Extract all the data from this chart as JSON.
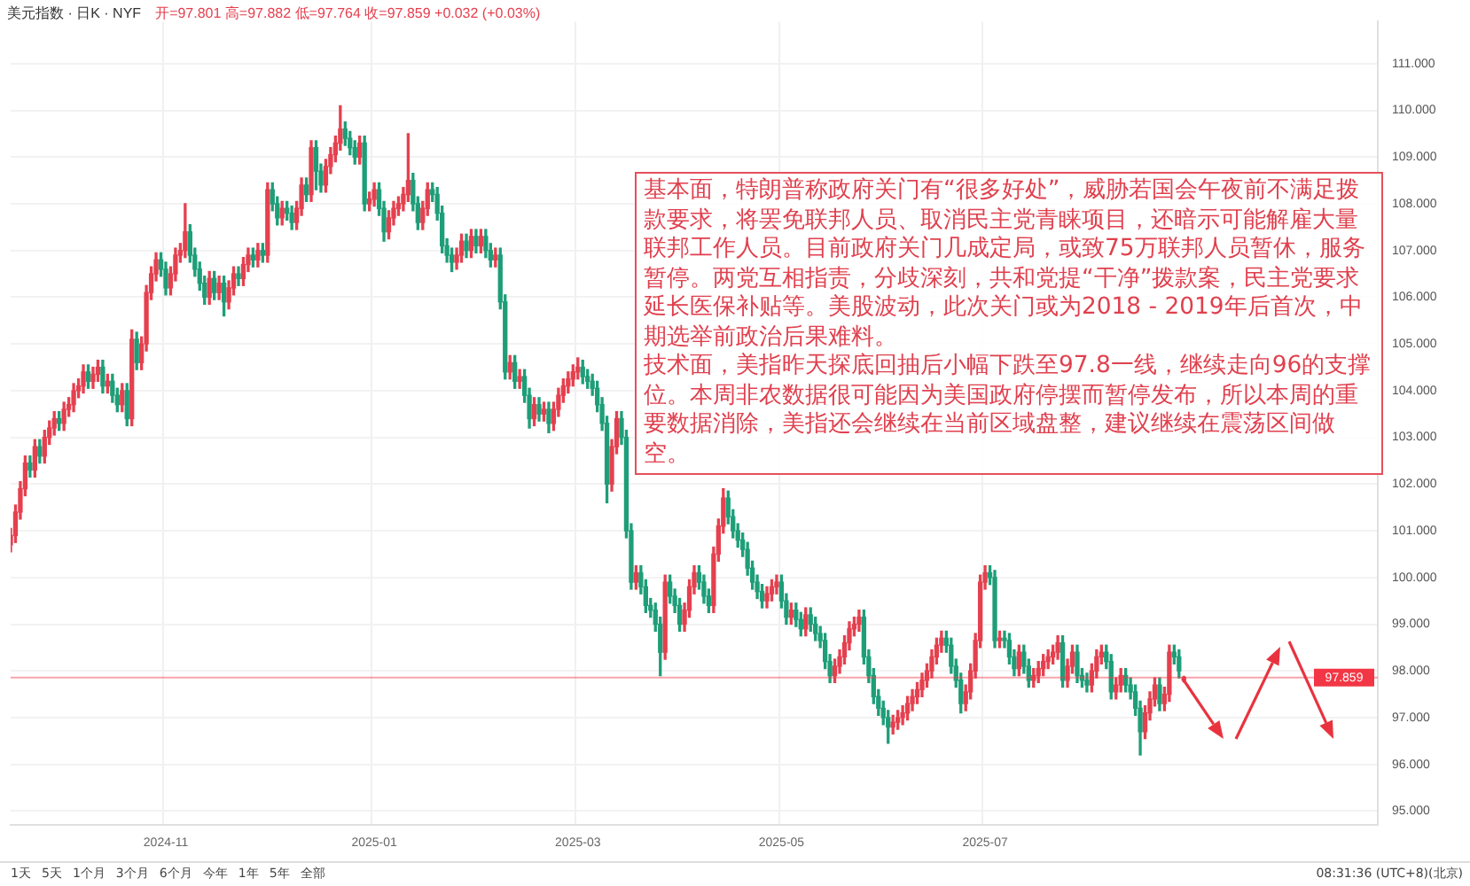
{
  "chart_data": {
    "type": "candlestick",
    "title": "美元指数 · 日K · NYF",
    "subtitle": "开=97.801 高=97.882 低=97.764 收=97.859 +0.032 (+0.03%)",
    "categories": [
      null,
      null,
      null,
      null,
      null,
      null,
      null,
      null,
      null,
      null,
      null,
      null,
      null,
      null,
      null,
      null,
      null,
      null,
      null,
      null,
      null,
      null,
      null,
      null,
      null,
      null,
      null,
      null,
      null,
      null,
      null,
      null,
      "2024-11",
      null,
      null,
      null,
      null,
      null,
      null,
      null,
      null,
      null,
      null,
      null,
      null,
      null,
      null,
      null,
      null,
      null,
      null,
      null,
      null,
      null,
      null,
      null,
      null,
      null,
      null,
      null,
      null,
      null,
      null,
      null,
      null,
      null,
      null,
      null,
      null,
      null,
      null,
      null,
      null,
      null,
      null,
      "2025-01",
      null,
      null,
      null,
      null,
      null,
      null,
      null,
      null,
      null,
      null,
      null,
      null,
      null,
      null,
      null,
      null,
      null,
      null,
      null,
      null,
      null,
      null,
      null,
      null,
      null,
      null,
      null,
      null,
      null,
      null,
      null,
      null,
      null,
      null,
      null,
      null,
      null,
      null,
      null,
      null,
      null,
      "2025-03",
      null,
      null,
      null,
      null,
      null,
      null,
      null,
      null,
      null,
      null,
      null,
      null,
      null,
      null,
      null,
      null,
      null,
      null,
      null,
      null,
      null,
      null,
      null,
      null,
      null,
      null,
      null,
      null,
      null,
      null,
      null,
      null,
      null,
      null,
      null,
      null,
      null,
      null,
      null,
      null,
      null,
      "2025-05",
      null,
      null,
      null,
      null,
      null,
      null,
      null,
      null,
      null,
      null,
      null,
      null,
      null,
      null,
      null,
      null,
      null,
      null,
      null,
      null,
      null,
      null,
      null,
      null,
      null,
      null,
      null,
      null,
      null,
      null,
      null,
      null,
      null,
      null,
      null,
      null,
      null,
      null,
      null,
      null,
      null,
      "2025-07",
      null,
      null,
      null,
      null,
      null,
      null,
      null,
      null,
      null,
      null,
      null,
      null,
      null,
      null,
      null,
      null,
      null,
      null,
      null,
      null,
      null,
      null,
      null,
      null,
      null,
      null,
      null,
      null,
      null,
      null,
      null,
      null,
      null,
      null,
      null,
      null,
      null,
      null,
      null,
      null,
      null,
      null,
      null,
      null,
      null,
      null,
      null,
      null,
      null,
      null,
      null,
      null,
      null,
      null,
      null,
      null,
      null,
      null,
      null,
      null,
      null,
      null,
      null,
      null,
      null,
      null,
      null,
      null,
      null,
      null,
      null,
      null,
      null,
      null,
      null,
      null,
      null,
      null,
      null,
      null,
      null
    ],
    "ohlc": [
      [
        100.7,
        101.05,
        100.55,
        100.9
      ],
      [
        100.9,
        101.55,
        100.75,
        101.4
      ],
      [
        101.4,
        102.05,
        101.25,
        101.9
      ],
      [
        101.9,
        102.6,
        101.75,
        102.45
      ],
      [
        102.45,
        102.6,
        102.15,
        102.3
      ],
      [
        102.3,
        102.95,
        102.15,
        102.8
      ],
      [
        102.8,
        102.95,
        102.45,
        102.6
      ],
      [
        102.6,
        103.15,
        102.45,
        103.0
      ],
      [
        103.0,
        103.35,
        102.85,
        103.2
      ],
      [
        103.2,
        103.55,
        103.05,
        103.4
      ],
      [
        103.4,
        103.55,
        103.15,
        103.3
      ],
      [
        103.3,
        103.75,
        103.15,
        103.6
      ],
      [
        103.6,
        103.85,
        103.45,
        103.7
      ],
      [
        103.7,
        104.15,
        103.55,
        104.0
      ],
      [
        104.0,
        104.25,
        103.85,
        104.1
      ],
      [
        104.1,
        104.55,
        103.95,
        104.4
      ],
      [
        104.4,
        104.55,
        104.05,
        104.2
      ],
      [
        104.2,
        104.5,
        104.05,
        104.35
      ],
      [
        104.35,
        104.65,
        104.2,
        104.5
      ],
      [
        104.5,
        104.65,
        103.95,
        104.1
      ],
      [
        104.1,
        104.35,
        103.95,
        104.2
      ],
      [
        104.2,
        104.35,
        103.75,
        103.9
      ],
      [
        103.9,
        104.05,
        103.55,
        103.7
      ],
      [
        103.7,
        104.15,
        103.55,
        104.0
      ],
      [
        104.0,
        104.15,
        103.25,
        103.4
      ],
      [
        103.4,
        105.3,
        103.25,
        105.1
      ],
      [
        105.1,
        105.25,
        104.45,
        104.6
      ],
      [
        104.6,
        105.15,
        104.45,
        105.0
      ],
      [
        105.0,
        106.25,
        104.85,
        106.1
      ],
      [
        106.1,
        106.65,
        105.95,
        106.5
      ],
      [
        106.5,
        106.95,
        106.35,
        106.8
      ],
      [
        106.8,
        106.95,
        106.45,
        106.6
      ],
      [
        106.6,
        106.75,
        106.05,
        106.2
      ],
      [
        106.2,
        106.65,
        106.05,
        106.5
      ],
      [
        106.5,
        107.05,
        106.35,
        106.9
      ],
      [
        106.9,
        107.15,
        106.75,
        107.0
      ],
      [
        107.0,
        108.0,
        106.85,
        107.4
      ],
      [
        107.4,
        107.55,
        106.75,
        106.9
      ],
      [
        106.9,
        107.05,
        106.45,
        106.6
      ],
      [
        106.6,
        106.75,
        106.15,
        106.3
      ],
      [
        106.3,
        106.45,
        105.85,
        106.0
      ],
      [
        106.0,
        106.55,
        105.85,
        106.4
      ],
      [
        106.4,
        106.55,
        105.95,
        106.1
      ],
      [
        106.1,
        106.45,
        105.95,
        106.3
      ],
      [
        106.3,
        106.45,
        105.6,
        105.9
      ],
      [
        105.9,
        106.35,
        105.75,
        106.2
      ],
      [
        106.2,
        106.65,
        106.05,
        106.5
      ],
      [
        106.5,
        106.65,
        106.25,
        106.4
      ],
      [
        106.4,
        106.85,
        106.25,
        106.7
      ],
      [
        106.7,
        107.05,
        106.55,
        106.9
      ],
      [
        106.9,
        107.05,
        106.65,
        106.8
      ],
      [
        106.8,
        107.15,
        106.65,
        107.0
      ],
      [
        107.0,
        107.15,
        106.75,
        106.9
      ],
      [
        106.9,
        108.45,
        106.75,
        108.3
      ],
      [
        108.3,
        108.45,
        107.85,
        108.0
      ],
      [
        108.0,
        108.15,
        107.55,
        107.7
      ],
      [
        107.7,
        108.05,
        107.55,
        107.9
      ],
      [
        107.9,
        108.05,
        107.65,
        107.8
      ],
      [
        107.8,
        107.95,
        107.45,
        107.6
      ],
      [
        107.6,
        108.05,
        107.45,
        107.9
      ],
      [
        107.9,
        108.55,
        107.75,
        108.4
      ],
      [
        108.4,
        108.55,
        108.05,
        108.2
      ],
      [
        108.2,
        109.35,
        108.05,
        109.2
      ],
      [
        109.2,
        109.35,
        108.3,
        108.7
      ],
      [
        108.7,
        108.85,
        108.25,
        108.4
      ],
      [
        108.4,
        108.95,
        108.25,
        108.8
      ],
      [
        108.8,
        109.2,
        108.65,
        109.05
      ],
      [
        109.05,
        109.45,
        108.9,
        109.3
      ],
      [
        109.3,
        110.1,
        109.15,
        109.6
      ],
      [
        109.6,
        109.75,
        109.25,
        109.4
      ],
      [
        109.4,
        109.55,
        109.05,
        109.2
      ],
      [
        109.2,
        109.35,
        108.85,
        109.0
      ],
      [
        109.0,
        109.45,
        108.85,
        109.3
      ],
      [
        109.3,
        109.45,
        107.85,
        108.0
      ],
      [
        108.0,
        108.25,
        107.85,
        108.1
      ],
      [
        108.1,
        108.45,
        107.95,
        108.3
      ],
      [
        108.3,
        108.45,
        107.75,
        107.9
      ],
      [
        107.9,
        108.05,
        107.2,
        107.4
      ],
      [
        107.4,
        107.85,
        107.25,
        107.7
      ],
      [
        107.7,
        108.05,
        107.55,
        107.9
      ],
      [
        107.9,
        108.15,
        107.75,
        108.0
      ],
      [
        108.0,
        108.35,
        107.85,
        108.2
      ],
      [
        108.2,
        109.5,
        108.05,
        108.5
      ],
      [
        108.5,
        108.65,
        107.85,
        108.0
      ],
      [
        108.0,
        108.15,
        107.45,
        107.6
      ],
      [
        107.6,
        108.05,
        107.45,
        107.9
      ],
      [
        107.9,
        108.45,
        107.75,
        108.3
      ],
      [
        108.3,
        108.45,
        108.05,
        108.2
      ],
      [
        108.2,
        108.35,
        107.65,
        107.8
      ],
      [
        107.8,
        107.95,
        106.95,
        107.1
      ],
      [
        107.1,
        107.25,
        106.75,
        106.9
      ],
      [
        106.9,
        107.05,
        106.55,
        106.75
      ],
      [
        106.75,
        107.05,
        106.6,
        106.9
      ],
      [
        106.9,
        107.35,
        106.75,
        107.2
      ],
      [
        107.2,
        107.35,
        106.85,
        107.0
      ],
      [
        107.0,
        107.45,
        106.85,
        107.3
      ],
      [
        107.3,
        107.45,
        106.95,
        107.1
      ],
      [
        107.1,
        107.45,
        106.95,
        107.3
      ],
      [
        107.3,
        107.45,
        106.85,
        107.0
      ],
      [
        107.0,
        107.15,
        106.65,
        106.8
      ],
      [
        106.8,
        107.05,
        106.65,
        106.9
      ],
      [
        106.9,
        107.05,
        105.75,
        105.9
      ],
      [
        105.9,
        106.05,
        104.25,
        104.4
      ],
      [
        104.4,
        104.75,
        104.25,
        104.6
      ],
      [
        104.6,
        104.75,
        104.05,
        104.2
      ],
      [
        104.2,
        104.45,
        104.05,
        104.3
      ],
      [
        104.3,
        104.45,
        103.75,
        103.9
      ],
      [
        103.9,
        104.05,
        103.2,
        103.4
      ],
      [
        103.4,
        103.85,
        103.25,
        103.7
      ],
      [
        103.7,
        103.85,
        103.35,
        103.5
      ],
      [
        103.5,
        103.75,
        103.35,
        103.6
      ],
      [
        103.6,
        103.75,
        103.1,
        103.3
      ],
      [
        103.3,
        103.75,
        103.15,
        103.6
      ],
      [
        103.6,
        104.05,
        103.45,
        103.9
      ],
      [
        103.9,
        104.25,
        103.75,
        104.1
      ],
      [
        104.1,
        104.4,
        103.95,
        104.25
      ],
      [
        104.25,
        104.55,
        104.1,
        104.4
      ],
      [
        104.4,
        104.7,
        104.25,
        104.5
      ],
      [
        104.5,
        104.65,
        104.15,
        104.3
      ],
      [
        104.3,
        104.45,
        104.05,
        104.2
      ],
      [
        104.2,
        104.35,
        103.9,
        104.05
      ],
      [
        104.05,
        104.2,
        103.55,
        103.7
      ],
      [
        103.7,
        103.85,
        103.15,
        103.3
      ],
      [
        103.3,
        103.45,
        101.6,
        102.0
      ],
      [
        102.0,
        102.95,
        101.85,
        102.8
      ],
      [
        102.8,
        103.55,
        102.65,
        103.4
      ],
      [
        103.4,
        103.55,
        102.85,
        103.0
      ],
      [
        103.0,
        103.15,
        100.85,
        101.0
      ],
      [
        101.0,
        101.15,
        99.75,
        99.9
      ],
      [
        99.9,
        100.25,
        99.75,
        100.1
      ],
      [
        100.1,
        100.25,
        99.65,
        99.8
      ],
      [
        99.8,
        99.95,
        99.25,
        99.4
      ],
      [
        99.4,
        99.55,
        99.15,
        99.3
      ],
      [
        99.3,
        99.45,
        98.85,
        99.0
      ],
      [
        99.0,
        99.15,
        97.9,
        98.4
      ],
      [
        98.4,
        100.05,
        98.25,
        99.9
      ],
      [
        99.9,
        100.05,
        99.45,
        99.6
      ],
      [
        99.6,
        99.75,
        99.25,
        99.4
      ],
      [
        99.4,
        99.55,
        98.85,
        99.0
      ],
      [
        99.0,
        99.45,
        98.85,
        99.3
      ],
      [
        99.3,
        99.95,
        99.15,
        99.8
      ],
      [
        99.8,
        100.25,
        99.65,
        100.1
      ],
      [
        100.1,
        100.25,
        99.75,
        99.9
      ],
      [
        99.9,
        100.05,
        99.45,
        99.6
      ],
      [
        99.6,
        99.75,
        99.25,
        99.4
      ],
      [
        99.4,
        100.65,
        99.25,
        100.5
      ],
      [
        100.5,
        101.25,
        100.35,
        101.1
      ],
      [
        101.1,
        101.9,
        100.95,
        101.7
      ],
      [
        101.7,
        101.85,
        101.15,
        101.3
      ],
      [
        101.3,
        101.45,
        100.85,
        101.0
      ],
      [
        101.0,
        101.15,
        100.65,
        100.8
      ],
      [
        100.8,
        100.95,
        100.45,
        100.6
      ],
      [
        100.6,
        100.75,
        100.05,
        100.2
      ],
      [
        100.2,
        100.35,
        99.75,
        99.9
      ],
      [
        99.9,
        100.05,
        99.55,
        99.7
      ],
      [
        99.7,
        99.85,
        99.35,
        99.5
      ],
      [
        99.5,
        99.8,
        99.35,
        99.65
      ],
      [
        99.65,
        99.95,
        99.5,
        99.8
      ],
      [
        99.8,
        100.05,
        99.65,
        99.9
      ],
      [
        99.9,
        100.05,
        99.35,
        99.5
      ],
      [
        99.5,
        99.65,
        99.0,
        99.15
      ],
      [
        99.15,
        99.45,
        99.0,
        99.3
      ],
      [
        99.3,
        99.45,
        98.95,
        99.1
      ],
      [
        99.1,
        99.25,
        98.75,
        98.9
      ],
      [
        98.9,
        99.35,
        98.75,
        99.2
      ],
      [
        99.2,
        99.35,
        98.85,
        99.0
      ],
      [
        99.0,
        99.15,
        98.65,
        98.8
      ],
      [
        98.8,
        98.95,
        98.5,
        98.65
      ],
      [
        98.65,
        98.8,
        98.05,
        98.2
      ],
      [
        98.2,
        98.35,
        97.75,
        97.9
      ],
      [
        97.9,
        98.25,
        97.75,
        98.1
      ],
      [
        98.1,
        98.45,
        97.95,
        98.3
      ],
      [
        98.3,
        98.75,
        98.15,
        98.6
      ],
      [
        98.6,
        99.05,
        98.45,
        98.9
      ],
      [
        98.9,
        99.15,
        98.75,
        99.0
      ],
      [
        99.0,
        99.3,
        98.85,
        99.15
      ],
      [
        99.15,
        99.3,
        98.15,
        98.3
      ],
      [
        98.3,
        98.45,
        97.75,
        97.9
      ],
      [
        97.9,
        98.05,
        97.3,
        97.45
      ],
      [
        97.45,
        97.6,
        97.05,
        97.2
      ],
      [
        97.2,
        97.35,
        96.85,
        97.0
      ],
      [
        97.0,
        97.15,
        96.45,
        96.8
      ],
      [
        96.8,
        97.05,
        96.65,
        96.9
      ],
      [
        96.9,
        97.15,
        96.75,
        97.0
      ],
      [
        97.0,
        97.25,
        96.85,
        97.1
      ],
      [
        97.1,
        97.45,
        96.95,
        97.3
      ],
      [
        97.3,
        97.6,
        97.15,
        97.45
      ],
      [
        97.45,
        97.75,
        97.3,
        97.6
      ],
      [
        97.6,
        97.95,
        97.45,
        97.8
      ],
      [
        97.8,
        98.15,
        97.65,
        98.0
      ],
      [
        98.0,
        98.45,
        97.85,
        98.3
      ],
      [
        98.3,
        98.7,
        98.15,
        98.55
      ],
      [
        98.55,
        98.85,
        98.4,
        98.7
      ],
      [
        98.7,
        98.85,
        98.4,
        98.55
      ],
      [
        98.55,
        98.7,
        97.95,
        98.1
      ],
      [
        98.1,
        98.25,
        97.65,
        97.8
      ],
      [
        97.8,
        97.95,
        97.1,
        97.3
      ],
      [
        97.3,
        97.7,
        97.15,
        97.55
      ],
      [
        97.55,
        98.15,
        97.4,
        98.0
      ],
      [
        98.0,
        98.8,
        97.85,
        98.65
      ],
      [
        98.65,
        100.05,
        98.5,
        99.9
      ],
      [
        99.9,
        100.25,
        99.75,
        100.1
      ],
      [
        100.1,
        100.25,
        99.85,
        100.0
      ],
      [
        100.0,
        100.15,
        98.5,
        98.65
      ],
      [
        98.65,
        98.85,
        98.5,
        98.7
      ],
      [
        98.7,
        98.85,
        98.5,
        98.65
      ],
      [
        98.65,
        98.8,
        98.15,
        98.3
      ],
      [
        98.3,
        98.45,
        97.9,
        98.05
      ],
      [
        98.05,
        98.55,
        97.9,
        98.4
      ],
      [
        98.4,
        98.55,
        97.95,
        98.1
      ],
      [
        98.1,
        98.25,
        97.65,
        97.8
      ],
      [
        97.8,
        98.05,
        97.65,
        97.9
      ],
      [
        97.9,
        98.2,
        97.75,
        98.05
      ],
      [
        98.05,
        98.35,
        97.9,
        98.2
      ],
      [
        98.2,
        98.45,
        98.05,
        98.3
      ],
      [
        98.3,
        98.55,
        98.15,
        98.4
      ],
      [
        98.4,
        98.75,
        98.25,
        98.6
      ],
      [
        98.6,
        98.75,
        97.65,
        97.8
      ],
      [
        97.8,
        98.25,
        97.65,
        98.1
      ],
      [
        98.1,
        98.55,
        97.95,
        98.4
      ],
      [
        98.4,
        98.55,
        97.75,
        97.9
      ],
      [
        97.9,
        98.05,
        97.65,
        97.8
      ],
      [
        97.8,
        97.95,
        97.55,
        97.7
      ],
      [
        97.7,
        98.15,
        97.55,
        98.0
      ],
      [
        98.0,
        98.45,
        97.85,
        98.3
      ],
      [
        98.3,
        98.55,
        98.15,
        98.4
      ],
      [
        98.4,
        98.55,
        98.05,
        98.2
      ],
      [
        98.2,
        98.35,
        97.4,
        97.55
      ],
      [
        97.55,
        97.85,
        97.4,
        97.7
      ],
      [
        97.7,
        98.05,
        97.55,
        97.9
      ],
      [
        97.9,
        98.05,
        97.55,
        97.7
      ],
      [
        97.7,
        97.85,
        97.4,
        97.55
      ],
      [
        97.55,
        97.7,
        97.05,
        97.2
      ],
      [
        97.2,
        97.35,
        96.2,
        96.7
      ],
      [
        96.7,
        97.25,
        96.55,
        97.1
      ],
      [
        97.1,
        97.55,
        96.95,
        97.4
      ],
      [
        97.4,
        97.85,
        97.25,
        97.7
      ],
      [
        97.7,
        97.85,
        97.15,
        97.3
      ],
      [
        97.3,
        97.65,
        97.15,
        97.5
      ],
      [
        97.5,
        98.55,
        97.35,
        98.4
      ],
      [
        98.4,
        98.55,
        98.15,
        98.3
      ],
      [
        98.3,
        98.45,
        97.85,
        98.0
      ],
      [
        97.801,
        97.882,
        97.764,
        97.859
      ],
      null,
      null,
      null,
      null,
      null,
      null,
      null,
      null,
      null,
      null,
      null,
      null,
      null,
      null,
      null,
      null,
      null,
      null,
      null,
      null,
      null,
      null,
      null,
      null,
      null,
      null,
      null,
      null,
      null,
      null,
      null,
      null,
      null,
      null,
      null,
      null,
      null,
      null,
      null,
      null
    ],
    "ylim": [
      94.7,
      111.9
    ],
    "yticks": [
      {
        "value": 95,
        "label": "95.000"
      },
      {
        "value": 96,
        "label": "96.000"
      },
      {
        "value": 97,
        "label": "97.000"
      },
      {
        "value": 98,
        "label": "98.000"
      },
      {
        "value": 99,
        "label": "99.000"
      },
      {
        "value": 100,
        "label": "100.000"
      },
      {
        "value": 101,
        "label": "101.000"
      },
      {
        "value": 102,
        "label": "102.000"
      },
      {
        "value": 103,
        "label": "103.000"
      },
      {
        "value": 104,
        "label": "104.000"
      },
      {
        "value": 105,
        "label": "105.000"
      },
      {
        "value": 106,
        "label": "106.000"
      },
      {
        "value": 107,
        "label": "107.000"
      },
      {
        "value": 108,
        "label": "108.000"
      },
      {
        "value": 109,
        "label": "109.000"
      },
      {
        "value": 110,
        "label": "110.000"
      },
      {
        "value": 111,
        "label": "111.000"
      }
    ],
    "ref_lines": [
      {
        "axis": "y",
        "value": 97.859,
        "label": "97.859",
        "color": "#f23645"
      }
    ],
    "grid": true,
    "annotations": [
      "基本面，特朗普称政府关门有“很多好处”，威胁若国会午夜前不满足拨款要求，将罢免联邦人员、取消民主党青睐项目，还暗示可能解雇大量联邦工作人员。目前政府关门几成定局，或致75万联邦人员暂休，服务暂停。两党互相指责，分歧深刻，共和党提“干净”拨款案，民主党要求延长医保补贴等。美股波动，此次关门或为2018 - 2019年后首次，中期选举前政治后果难料。",
      "技术面，美指昨天探底回抽后小幅下跌至97.8一线，继续走向96的支撑位。本周非农数据很可能因为美国政府停摆而暂停发布，所以本周的重要数据消除，美指还会继续在当前区域盘整，建议继续在震荡区间做空。",
      "1天",
      "5天",
      "1个月",
      "3个月",
      "6个月",
      "今年",
      "1年",
      "5年",
      "全部",
      "08:31:36 (UTC+8)(北京)"
    ]
  }
}
